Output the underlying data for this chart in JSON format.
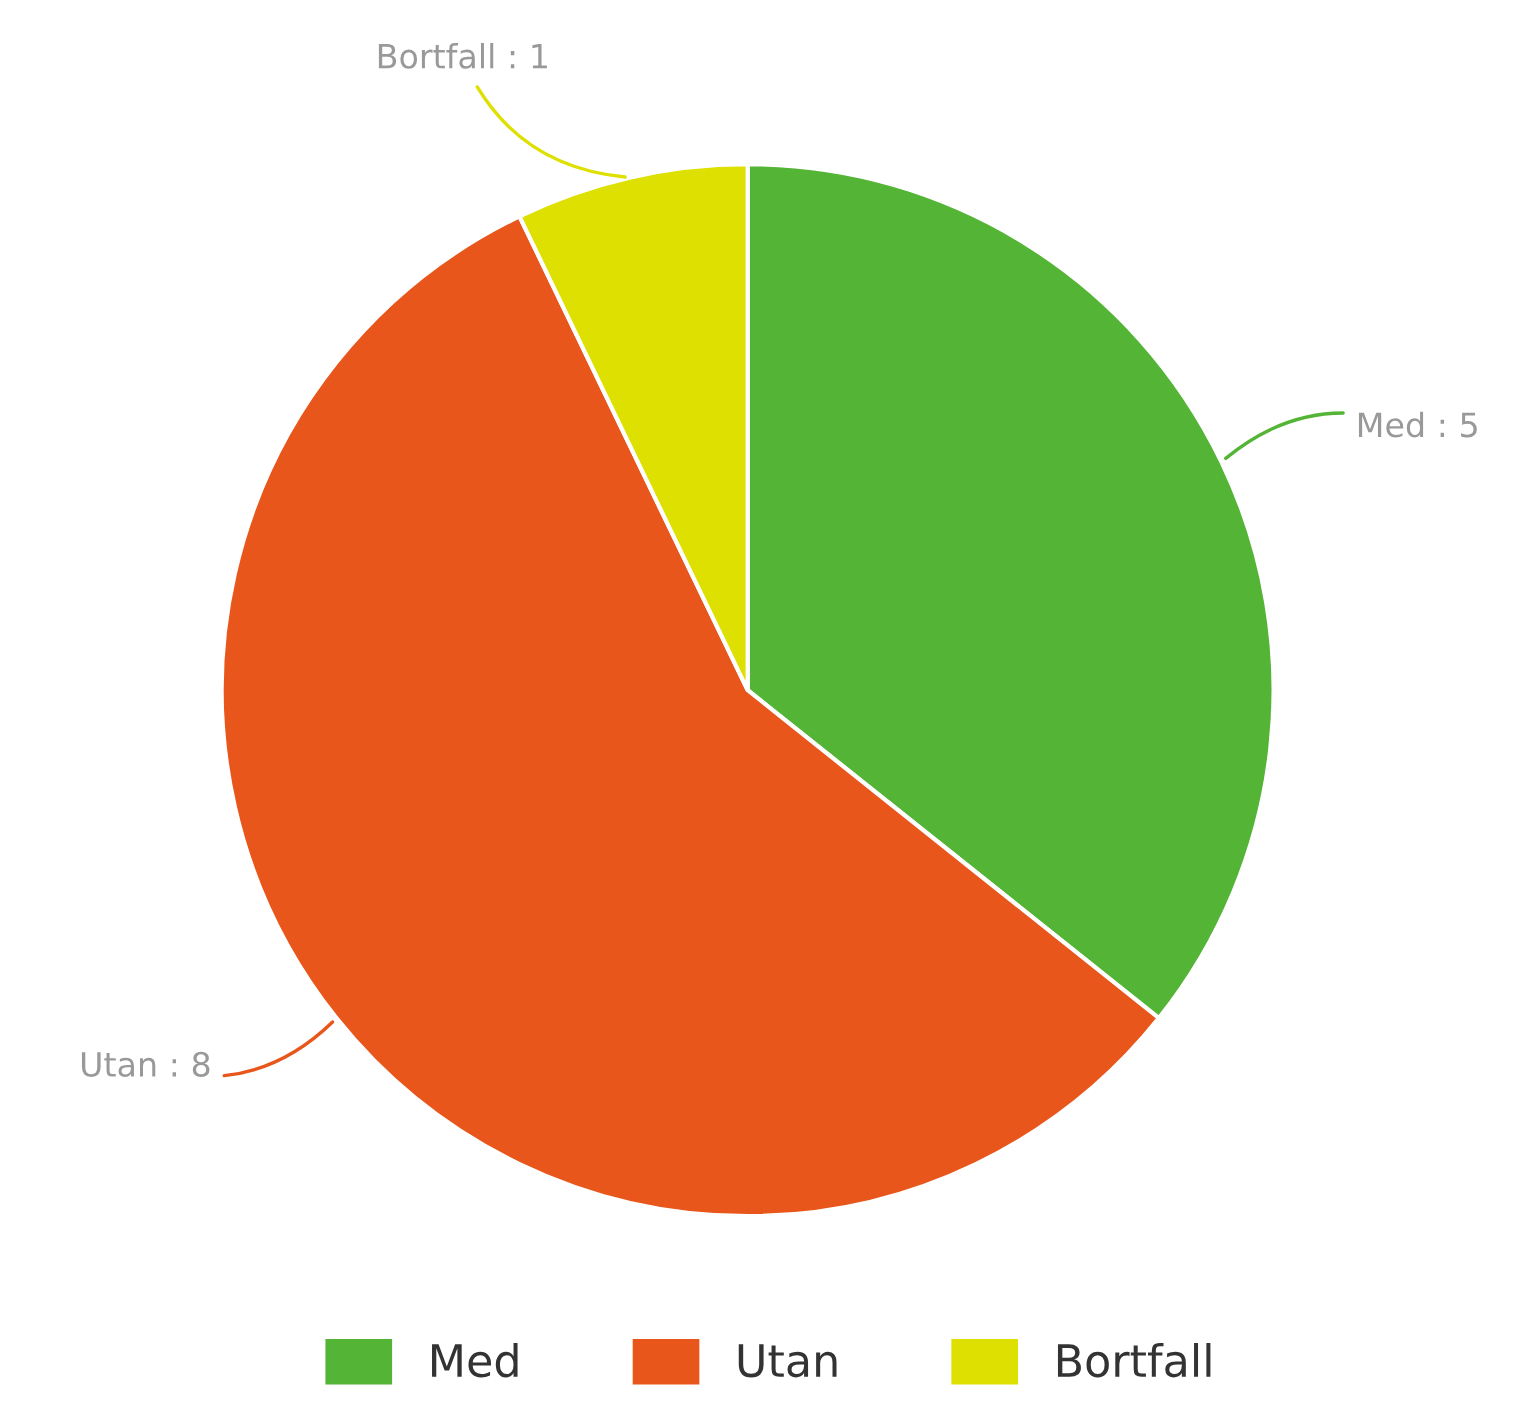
{
  "chart_data": {
    "type": "pie",
    "categories": [
      "Med",
      "Utan",
      "Bortfall"
    ],
    "values": [
      5,
      8,
      1
    ],
    "colors": [
      "#54b435",
      "#e8561c",
      "#dde000"
    ],
    "value_labels": [
      "Med : 5",
      "Utan : 8",
      "Bortfall : 1"
    ],
    "legend": "bottom"
  }
}
